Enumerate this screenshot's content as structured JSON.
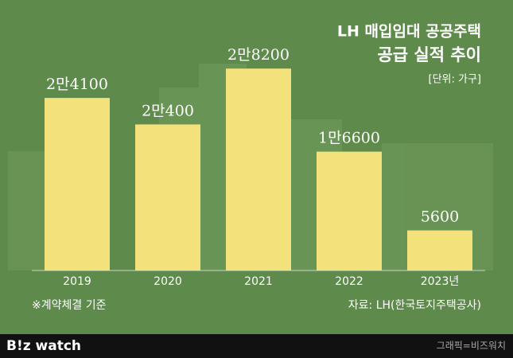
{
  "chart_data": {
    "type": "bar",
    "title": "LH 매입임대 공공주택",
    "subtitle": "공급 실적 추이",
    "unit": "[단위: 가구]",
    "categories": [
      "2019",
      "2020",
      "2021",
      "2022",
      "2023년"
    ],
    "values": [
      24100,
      20400,
      28200,
      16600,
      5600
    ],
    "value_labels": [
      "2만4100",
      "2만400",
      "2만8200",
      "1만6600",
      "5600"
    ],
    "color": "#f3e27c",
    "ylim": [
      0,
      30000
    ],
    "note": "※계약체결 기준",
    "source": "자료: LH(한국토지주택공사)"
  },
  "footer": {
    "logo": "B!z watch",
    "credit": "그래픽=비즈워치"
  }
}
